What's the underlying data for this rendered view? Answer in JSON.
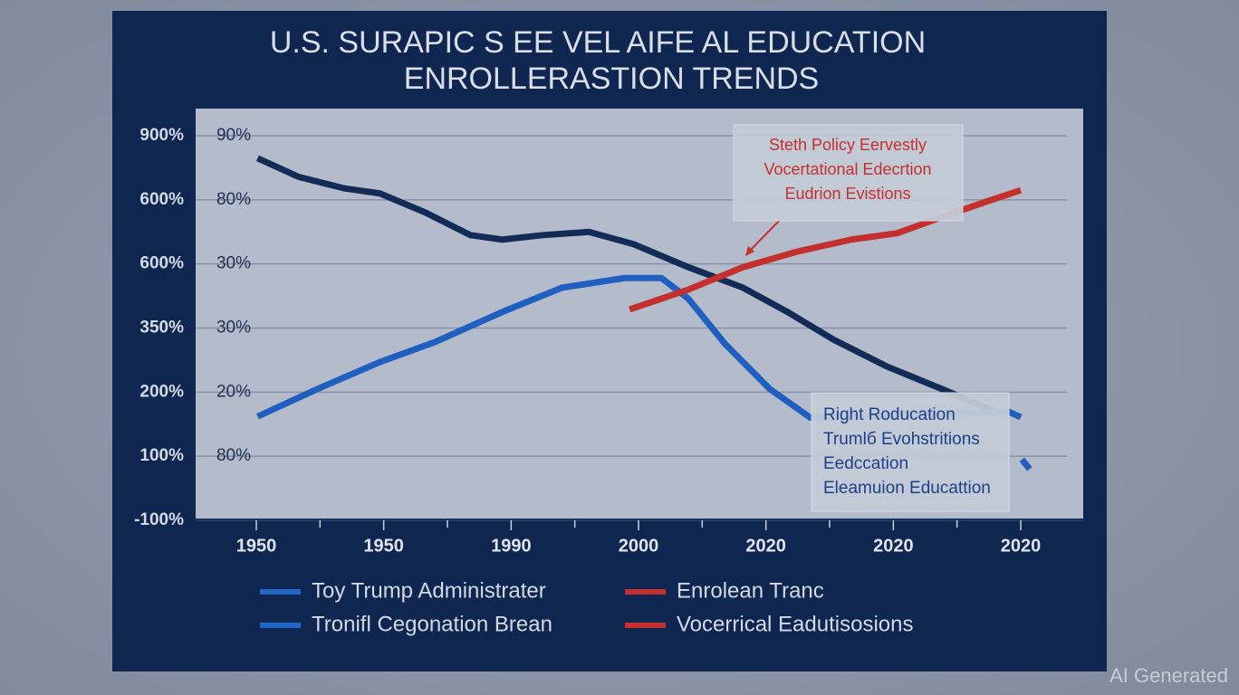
{
  "chart_data": {
    "type": "line",
    "title_lines": [
      "U.S. SURAPIC S EE VEL AIFE AL EDUCATION",
      "ENROLLERASTION TRENDS"
    ],
    "categories": [
      "1950",
      "1950",
      "1990",
      "2000",
      "2020",
      "2020",
      "2020"
    ],
    "y_labels": [
      "-100%",
      "100%",
      "200%",
      "350%",
      "600%",
      "600%",
      "900%"
    ],
    "y_labels_inner": [
      null,
      "80%",
      "20%",
      "30%",
      "30%",
      "80%",
      "90%"
    ],
    "grid": true,
    "series": [
      {
        "color": "#132c57",
        "x": [
          0.01,
          0.33,
          0.69,
          0.97,
          1.33,
          1.68,
          1.93,
          2.25,
          2.61,
          2.96,
          3.39,
          3.82,
          4.17,
          4.53,
          4.95,
          5.38,
          5.81
        ],
        "values": [
          5.65,
          5.36,
          5.18,
          5.1,
          4.8,
          4.45,
          4.38,
          4.45,
          4.5,
          4.31,
          3.95,
          3.63,
          3.25,
          2.82,
          2.4,
          2.05,
          1.69
        ]
      },
      {
        "color": "#1f5fbf",
        "x": [
          0.01,
          0.48,
          0.97,
          1.4,
          1.93,
          2.4,
          2.89,
          3.18,
          3.39,
          3.68,
          4.03,
          4.35,
          5.91,
          6.0
        ],
        "values": [
          1.62,
          2.05,
          2.47,
          2.78,
          3.25,
          3.63,
          3.78,
          3.78,
          3.46,
          2.75,
          2.05,
          1.6,
          1.69,
          1.61
        ]
      },
      {
        "color": "#1f5fbf",
        "x": [
          6.01,
          6.07
        ],
        "values": [
          0.95,
          0.8
        ]
      },
      {
        "color": "#c4302e",
        "x": [
          2.93,
          3.39,
          3.82,
          4.24,
          4.67,
          5.03,
          5.38,
          5.74,
          6.0
        ],
        "values": [
          3.29,
          3.6,
          3.95,
          4.19,
          4.38,
          4.48,
          4.73,
          4.98,
          5.15
        ]
      }
    ],
    "legend": [
      {
        "label": "Toy Trump Administrater",
        "color": "#1f66c8"
      },
      {
        "label": "Enrolean Tranc",
        "color": "#c4302e"
      },
      {
        "label": "Tronifl Cegonation Brean",
        "color": "#1f66c8"
      },
      {
        "label": "Vocerrical Eadutisosions",
        "color": "#c4302e"
      }
    ],
    "annotations": [
      {
        "lines": [
          "Steth Policy Eervestly",
          "Vocertational Edecrtion",
          "Eudrion Evistions"
        ],
        "color": "#c4302e"
      },
      {
        "lines": [
          "Right Roducation",
          "Trumlб Evohstritions",
          "Eedccation",
          "Eleamuion Educattion"
        ],
        "color": "#1f3f8a"
      }
    ]
  },
  "watermark": "AI Generated"
}
